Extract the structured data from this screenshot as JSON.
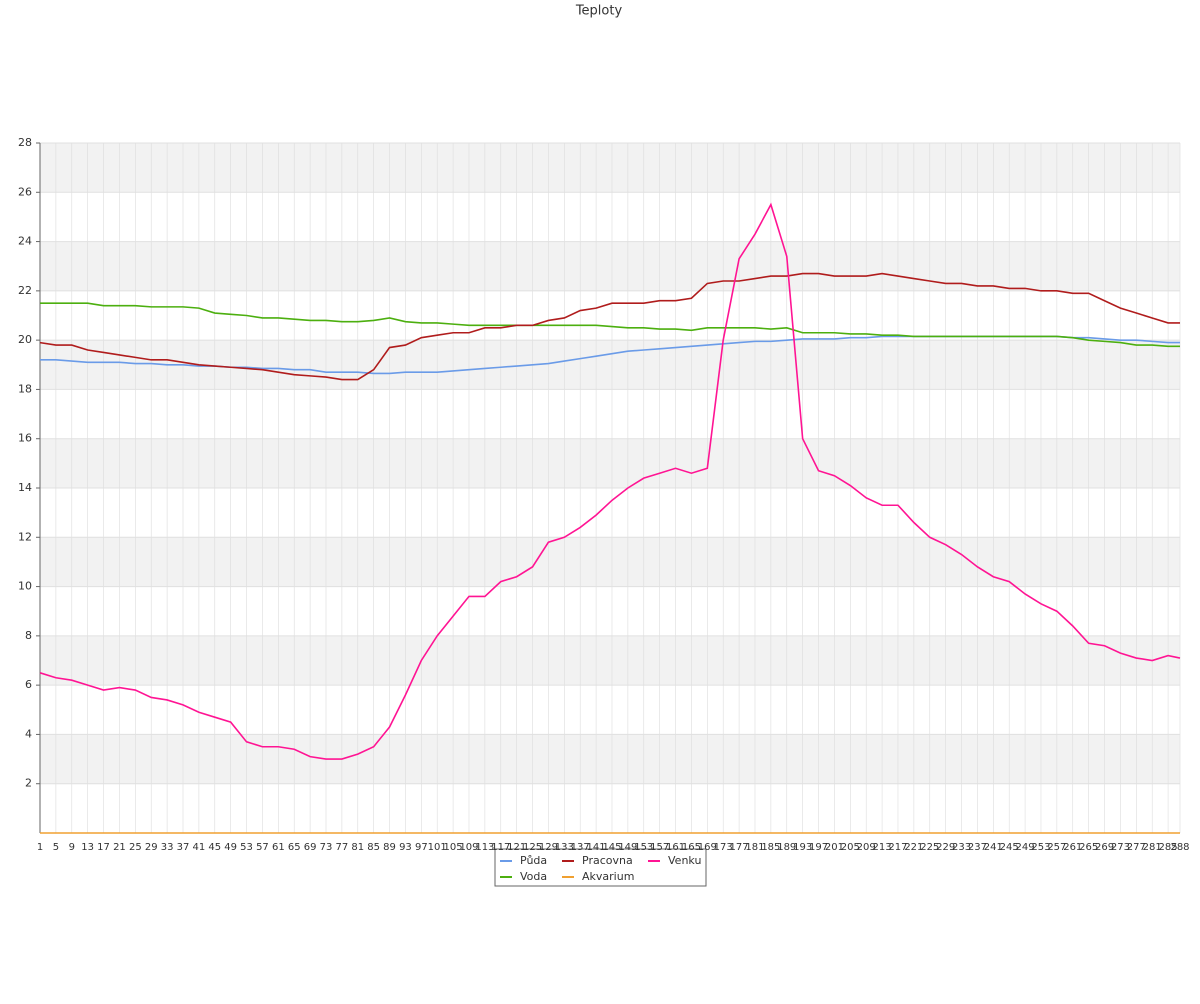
{
  "chart_data": {
    "type": "line",
    "title": "Teploty",
    "x": [
      1,
      5,
      9,
      13,
      17,
      21,
      25,
      29,
      33,
      37,
      41,
      45,
      49,
      53,
      57,
      61,
      65,
      69,
      73,
      77,
      81,
      85,
      89,
      93,
      97,
      101,
      105,
      109,
      113,
      117,
      121,
      125,
      129,
      133,
      137,
      141,
      145,
      149,
      153,
      157,
      161,
      165,
      169,
      173,
      177,
      181,
      185,
      189,
      193,
      197,
      201,
      205,
      209,
      213,
      217,
      221,
      225,
      229,
      233,
      237,
      241,
      245,
      249,
      253,
      257,
      261,
      265,
      269,
      273,
      277,
      281,
      285,
      288
    ],
    "xlim": [
      1,
      288
    ],
    "xticks": [
      1,
      5,
      9,
      13,
      17,
      21,
      25,
      29,
      33,
      37,
      41,
      45,
      49,
      53,
      57,
      61,
      65,
      69,
      73,
      77,
      81,
      85,
      89,
      93,
      97,
      101,
      105,
      109,
      113,
      117,
      121,
      125,
      129,
      133,
      137,
      141,
      145,
      149,
      153,
      157,
      161,
      165,
      169,
      173,
      177,
      181,
      185,
      189,
      193,
      197,
      201,
      205,
      209,
      213,
      217,
      221,
      225,
      229,
      233,
      237,
      241,
      245,
      249,
      253,
      257,
      261,
      265,
      269,
      273,
      277,
      281,
      285,
      288
    ],
    "ylim": [
      0,
      28
    ],
    "yticks": [
      2,
      4,
      6,
      8,
      10,
      12,
      14,
      16,
      18,
      20,
      22,
      24,
      26,
      28
    ],
    "grid": true,
    "series": [
      {
        "name": "Půda",
        "color": "#6a9be8",
        "values": [
          19.2,
          19.2,
          19.15,
          19.1,
          19.1,
          19.1,
          19.05,
          19.05,
          19.0,
          19.0,
          18.95,
          18.95,
          18.9,
          18.9,
          18.85,
          18.85,
          18.8,
          18.8,
          18.7,
          18.7,
          18.7,
          18.65,
          18.65,
          18.7,
          18.7,
          18.7,
          18.75,
          18.8,
          18.85,
          18.9,
          18.95,
          19.0,
          19.05,
          19.15,
          19.25,
          19.35,
          19.45,
          19.55,
          19.6,
          19.65,
          19.7,
          19.75,
          19.8,
          19.85,
          19.9,
          19.95,
          19.95,
          20.0,
          20.05,
          20.05,
          20.05,
          20.1,
          20.1,
          20.15,
          20.15,
          20.15,
          20.15,
          20.15,
          20.15,
          20.15,
          20.15,
          20.15,
          20.15,
          20.15,
          20.15,
          20.1,
          20.1,
          20.05,
          20.0,
          20.0,
          19.95,
          19.9,
          19.9
        ]
      },
      {
        "name": "Voda",
        "color": "#4caf0f",
        "values": [
          21.5,
          21.5,
          21.5,
          21.5,
          21.4,
          21.4,
          21.4,
          21.35,
          21.35,
          21.35,
          21.3,
          21.1,
          21.05,
          21.0,
          20.9,
          20.9,
          20.85,
          20.8,
          20.8,
          20.75,
          20.75,
          20.8,
          20.9,
          20.75,
          20.7,
          20.7,
          20.65,
          20.6,
          20.6,
          20.6,
          20.6,
          20.6,
          20.6,
          20.6,
          20.6,
          20.6,
          20.55,
          20.5,
          20.5,
          20.45,
          20.45,
          20.4,
          20.5,
          20.5,
          20.5,
          20.5,
          20.45,
          20.5,
          20.3,
          20.3,
          20.3,
          20.25,
          20.25,
          20.2,
          20.2,
          20.15,
          20.15,
          20.15,
          20.15,
          20.15,
          20.15,
          20.15,
          20.15,
          20.15,
          20.15,
          20.1,
          20.0,
          19.95,
          19.9,
          19.8,
          19.8,
          19.75,
          19.75
        ]
      },
      {
        "name": "Pracovna",
        "color": "#b01c1c",
        "values": [
          19.9,
          19.8,
          19.8,
          19.6,
          19.5,
          19.4,
          19.3,
          19.2,
          19.2,
          19.1,
          19.0,
          18.95,
          18.9,
          18.85,
          18.8,
          18.7,
          18.6,
          18.55,
          18.5,
          18.4,
          18.4,
          18.8,
          19.7,
          19.8,
          20.1,
          20.2,
          20.3,
          20.3,
          20.5,
          20.5,
          20.6,
          20.6,
          20.8,
          20.9,
          21.2,
          21.3,
          21.5,
          21.5,
          21.5,
          21.6,
          21.6,
          21.7,
          22.3,
          22.4,
          22.4,
          22.5,
          22.6,
          22.6,
          22.7,
          22.7,
          22.6,
          22.6,
          22.6,
          22.7,
          22.6,
          22.5,
          22.4,
          22.3,
          22.3,
          22.2,
          22.2,
          22.1,
          22.1,
          22.0,
          22.0,
          21.9,
          21.9,
          21.6,
          21.3,
          21.1,
          20.9,
          20.7,
          20.7
        ]
      },
      {
        "name": "Akvarium",
        "color": "#f0a030",
        "values": [
          0,
          0,
          0,
          0,
          0,
          0,
          0,
          0,
          0,
          0,
          0,
          0,
          0,
          0,
          0,
          0,
          0,
          0,
          0,
          0,
          0,
          0,
          0,
          0,
          0,
          0,
          0,
          0,
          0,
          0,
          0,
          0,
          0,
          0,
          0,
          0,
          0,
          0,
          0,
          0,
          0,
          0,
          0,
          0,
          0,
          0,
          0,
          0,
          0,
          0,
          0,
          0,
          0,
          0,
          0,
          0,
          0,
          0,
          0,
          0,
          0,
          0,
          0,
          0,
          0,
          0,
          0,
          0,
          0,
          0,
          0,
          0,
          0
        ]
      },
      {
        "name": "Venku",
        "color": "#ff1493",
        "values": [
          6.5,
          6.3,
          6.2,
          6.0,
          5.8,
          5.9,
          5.8,
          5.5,
          5.4,
          5.2,
          4.9,
          4.7,
          4.5,
          3.7,
          3.5,
          3.5,
          3.4,
          3.1,
          3.0,
          3.0,
          3.2,
          3.5,
          4.3,
          5.6,
          7.0,
          8.0,
          8.8,
          9.6,
          9.6,
          10.2,
          10.4,
          10.8,
          11.8,
          12.0,
          12.4,
          12.9,
          13.5,
          14.0,
          14.4,
          14.6,
          14.8,
          14.6,
          14.8,
          20.0,
          23.3,
          24.3,
          25.5,
          23.4,
          16.0,
          14.7,
          14.5,
          14.1,
          13.6,
          13.3,
          13.3,
          12.6,
          12.0,
          11.7,
          11.3,
          10.8,
          10.4,
          10.2,
          9.7,
          9.3,
          9.0,
          8.4,
          7.7,
          7.6,
          7.3,
          7.1,
          7.0,
          7.2,
          7.1
        ]
      }
    ]
  }
}
